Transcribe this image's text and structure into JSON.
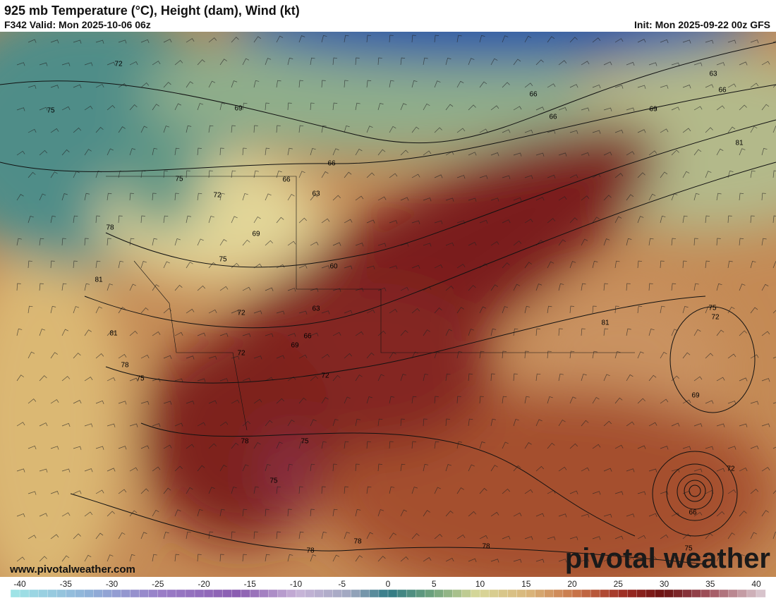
{
  "header": {
    "title": "925 mb Temperature (°C), Height (dam), Wind (kt)",
    "valid": "F342 Valid: Mon 2025-10-06 06z",
    "init": "Init: Mon 2025-09-22 00z GFS"
  },
  "map": {
    "contour_labels": [
      "72",
      "75",
      "69",
      "66",
      "63",
      "66",
      "69",
      "66",
      "66",
      "66",
      "63",
      "75",
      "72",
      "78",
      "69",
      "75",
      "60",
      "81",
      "72",
      "63",
      "66",
      "69",
      "72",
      "81",
      "78",
      "75",
      "72",
      "81",
      "75",
      "72",
      "69",
      "78",
      "75",
      "75",
      "72",
      "66",
      "75",
      "78",
      "78",
      "78",
      "81"
    ],
    "watermark": "www.pivotalweather.com",
    "logo": "pivotal weather"
  },
  "colorbar": {
    "ticks": [
      -40,
      -35,
      -30,
      -25,
      -20,
      -15,
      -10,
      -5,
      0,
      5,
      10,
      15,
      20,
      25,
      30,
      35,
      40
    ]
  }
}
